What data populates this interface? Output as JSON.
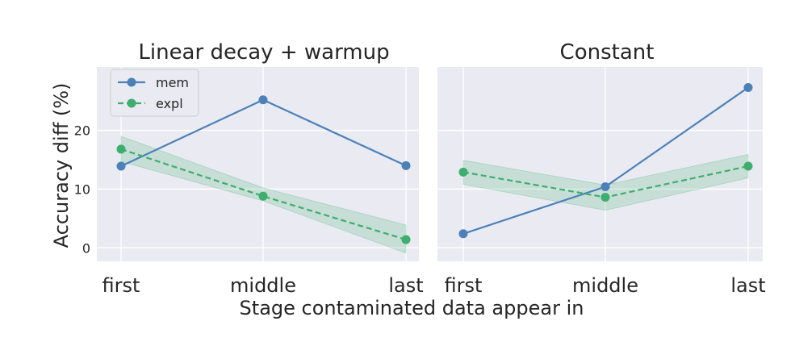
{
  "chart_data": {
    "type": "line",
    "xlabel": "Stage contaminated data appear in",
    "ylabel": "Accuracy diff (%)",
    "categories": [
      "first",
      "middle",
      "last"
    ],
    "ylim": [
      -2.3,
      30.8
    ],
    "yticks": [
      0,
      10,
      20
    ],
    "grid": true,
    "legend_location": "top-left of first panel",
    "colors": {
      "mem": "#4C81B8",
      "expl": "#3DAE6E",
      "band": "#3DAE6E",
      "panel_bg": "#EAEAF2"
    },
    "panels": [
      {
        "title": "Linear decay + warmup",
        "series": [
          {
            "name": "mem",
            "style": "solid",
            "values": [
              13.9,
              25.2,
              14.0
            ]
          },
          {
            "name": "expl",
            "style": "dashed",
            "values": [
              16.8,
              8.8,
              1.4
            ],
            "band_low": [
              14.7,
              8.0,
              -0.9
            ],
            "band_high": [
              19.0,
              10.2,
              3.9
            ]
          }
        ]
      },
      {
        "title": "Constant",
        "series": [
          {
            "name": "mem",
            "style": "solid",
            "values": [
              2.4,
              10.4,
              27.3
            ]
          },
          {
            "name": "expl",
            "style": "dashed",
            "values": [
              12.9,
              8.6,
              13.9
            ],
            "band_low": [
              10.8,
              6.4,
              11.9
            ],
            "band_high": [
              14.9,
              10.7,
              15.9
            ]
          }
        ]
      }
    ]
  }
}
